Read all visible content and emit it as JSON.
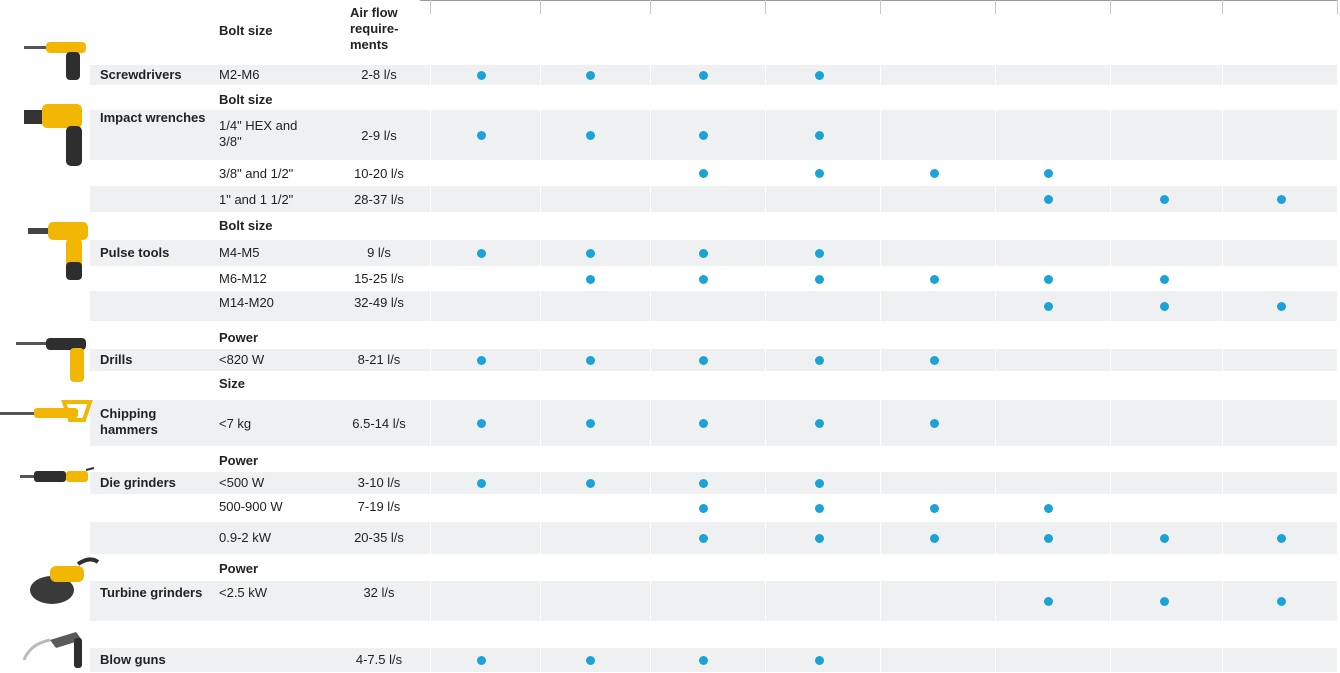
{
  "header": {
    "bolt_size": "Bolt size",
    "air_flow": "Air flow\nrequire-\nments"
  },
  "colors": {
    "dot": "#1aa3d4",
    "shade": "#eef0f2",
    "tool_yellow": "#f2b705"
  },
  "tools": [
    {
      "name": "Screwdrivers",
      "icon": "screwdriver-icon"
    },
    {
      "name": "Impact wrenches",
      "icon": "impact-wrench-icon"
    },
    {
      "name": "Pulse tools",
      "icon": "pulse-tool-icon"
    },
    {
      "name": "Drills",
      "icon": "drill-icon"
    },
    {
      "name": "Chipping hammers",
      "icon": "chipping-hammer-icon"
    },
    {
      "name": "Die grinders",
      "icon": "die-grinder-icon"
    },
    {
      "name": "Turbine grinders",
      "icon": "turbine-grinder-icon"
    },
    {
      "name": "Blow guns",
      "icon": "blow-gun-icon"
    }
  ],
  "subheaders": {
    "impact": "Bolt size",
    "pulse": "Bolt size",
    "drills": "Power",
    "chipping": "Size",
    "die": "Power",
    "turbine": "Power"
  },
  "rows": [
    {
      "size": "M2-M6",
      "air": "2-8 l/s",
      "dots": [
        1,
        1,
        1,
        1,
        0,
        0,
        0,
        0
      ]
    },
    {
      "size": "1/4\" HEX and 3/8\"",
      "air": "2-9 l/s",
      "dots": [
        1,
        1,
        1,
        1,
        0,
        0,
        0,
        0
      ]
    },
    {
      "size": "3/8\" and 1/2\"",
      "air": "10-20 l/s",
      "dots": [
        0,
        0,
        1,
        1,
        1,
        1,
        0,
        0
      ]
    },
    {
      "size": "1\" and 1 1/2\"",
      "air": "28-37 l/s",
      "dots": [
        0,
        0,
        0,
        0,
        0,
        1,
        1,
        1
      ]
    },
    {
      "size": "M4-M5",
      "air": "9 l/s",
      "dots": [
        1,
        1,
        1,
        1,
        0,
        0,
        0,
        0
      ]
    },
    {
      "size": "M6-M12",
      "air": "15-25 l/s",
      "dots": [
        0,
        1,
        1,
        1,
        1,
        1,
        1,
        0
      ]
    },
    {
      "size": "M14-M20",
      "air": "32-49 l/s",
      "dots": [
        0,
        0,
        0,
        0,
        0,
        1,
        1,
        1
      ]
    },
    {
      "size": "<820 W",
      "air": "8-21 l/s",
      "dots": [
        1,
        1,
        1,
        1,
        1,
        0,
        0,
        0
      ]
    },
    {
      "size": "<7 kg",
      "air": "6.5-14 l/s",
      "dots": [
        1,
        1,
        1,
        1,
        1,
        0,
        0,
        0
      ]
    },
    {
      "size": "<500 W",
      "air": "3-10 l/s",
      "dots": [
        1,
        1,
        1,
        1,
        0,
        0,
        0,
        0
      ]
    },
    {
      "size": "500-900 W",
      "air": "7-19 l/s",
      "dots": [
        0,
        0,
        1,
        1,
        1,
        1,
        0,
        0
      ]
    },
    {
      "size": "0.9-2 kW",
      "air": "20-35 l/s",
      "dots": [
        0,
        0,
        1,
        1,
        1,
        1,
        1,
        1
      ]
    },
    {
      "size": "<2.5 kW",
      "air": "32 l/s",
      "dots": [
        0,
        0,
        0,
        0,
        0,
        1,
        1,
        1
      ]
    },
    {
      "size": "",
      "air": "4-7.5 l/s",
      "dots": [
        1,
        1,
        1,
        1,
        0,
        0,
        0,
        0
      ]
    }
  ]
}
